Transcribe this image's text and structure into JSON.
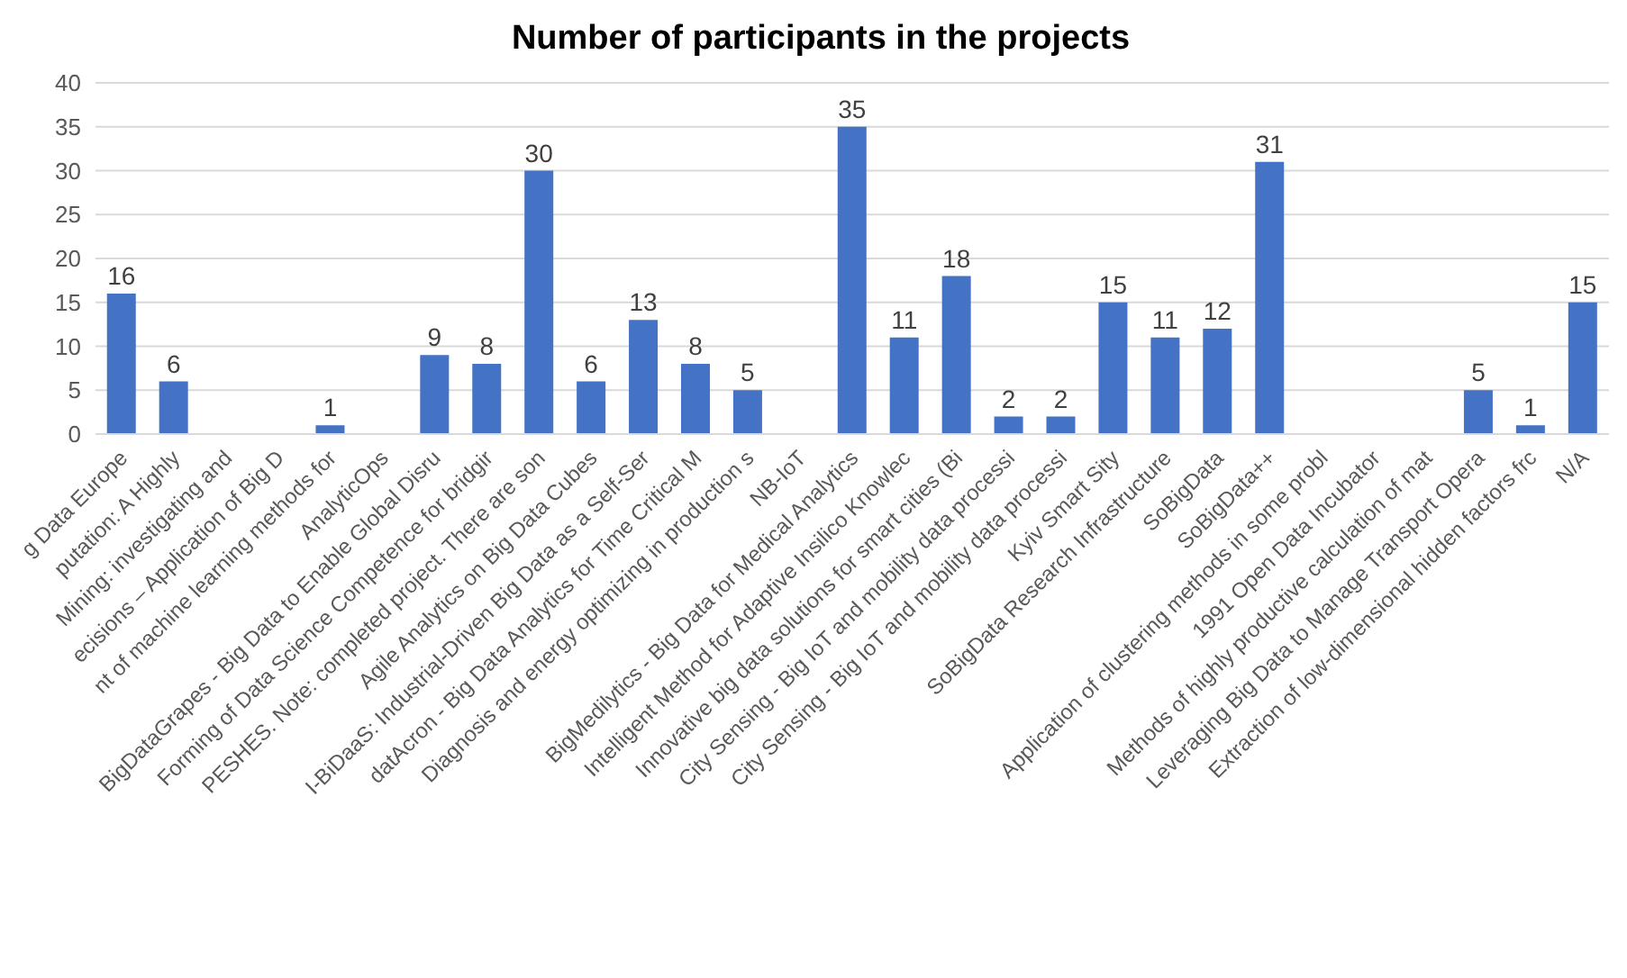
{
  "chart_data": {
    "type": "bar",
    "title": "Number of participants in the projects",
    "categories": [
      "g Data Europe",
      "putation: A Highly",
      "Mining: investigating and",
      "ecisions – Application of Big D",
      "nt of machine learning methods for",
      "AnalyticOps",
      "BigDataGrapes - Big Data to Enable Global Disru",
      "Forming of Data Science Competence for bridgir",
      "PESHES. Note: completed project. There are son",
      "Agile Analytics on Big Data Cubes",
      "I-BiDaaS: Industrial-Driven Big Data as a Self-Ser",
      "datAcron - Big Data Analytics for Time Critical M",
      "Diagnosis and energy optimizing in production s",
      "NB-IoT",
      "BigMedilytics - Big Data for Medical Analytics",
      "Intelligent Method for Adaptive Insilico Knowlec",
      "Innovative big data solutions for smart cities (Bi",
      "City Sensing - Big IoT and mobility data processi",
      "City Sensing - Big IoT and mobility data processi",
      "Kyiv Smart Sity",
      "SoBigData Research Infrastructure",
      "SoBigData",
      "SoBigData++",
      "Application of clustering methods in some probl",
      "1991 Open Data Incubator",
      "Methods of highly productive calculation of mat",
      "Leveraging Big Data to Manage Transport Opera",
      "Extraction of low-dimensional hidden factors frc",
      "N/A"
    ],
    "values": [
      16,
      6,
      null,
      null,
      1,
      null,
      9,
      8,
      30,
      6,
      13,
      8,
      5,
      null,
      35,
      11,
      18,
      2,
      2,
      15,
      11,
      12,
      31,
      null,
      null,
      null,
      5,
      1,
      15
    ],
    "color": "#4472c4",
    "ylim": [
      0,
      40
    ],
    "yticks": [
      0,
      5,
      10,
      15,
      20,
      25,
      30,
      35,
      40
    ],
    "grid": "y",
    "data_labels": true
  }
}
